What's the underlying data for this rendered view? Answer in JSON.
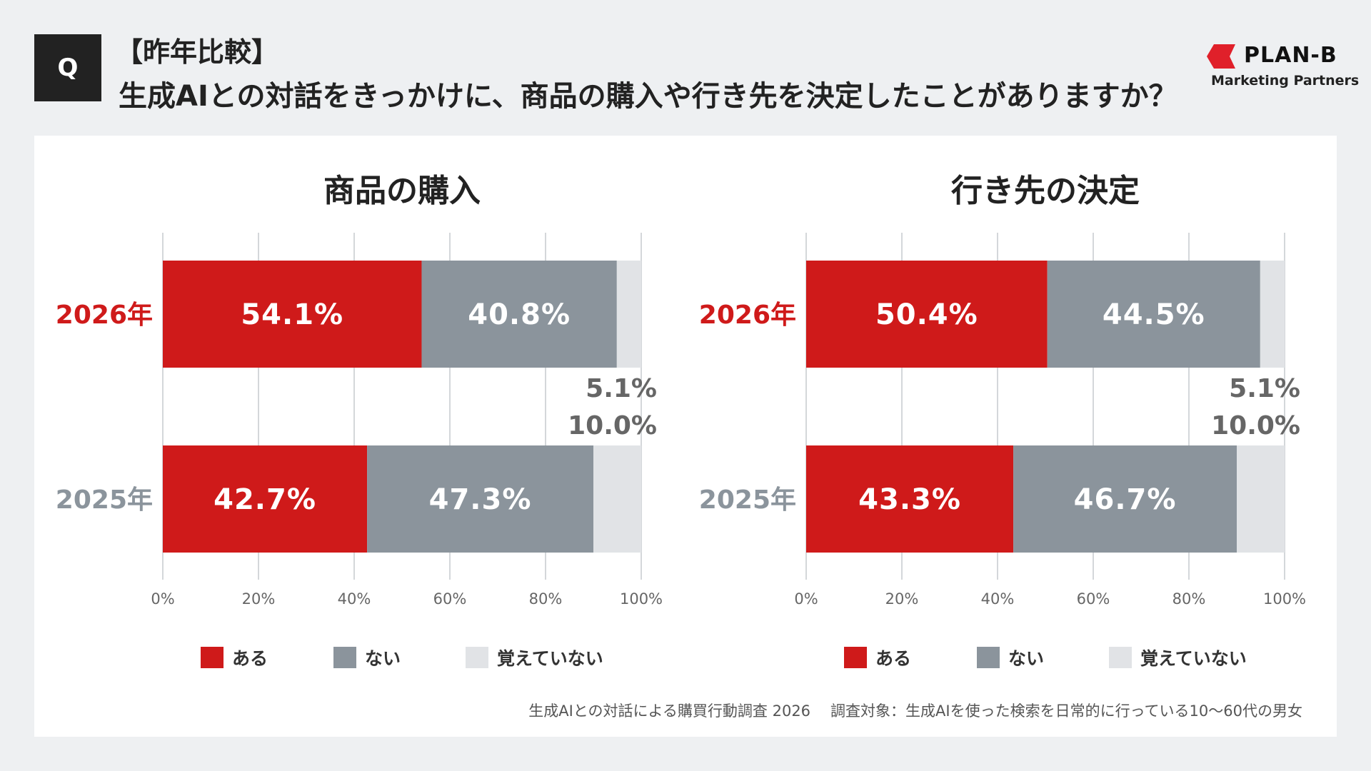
{
  "header": {
    "q_label": "Q",
    "subtitle": "【昨年比較】",
    "question": "生成AIとの対話をきっかけに、商品の購入や行き先を決定したことがありますか？"
  },
  "logo": {
    "name": "PLAN-B",
    "tagline": "Marketing Partners",
    "color": "#e0202a"
  },
  "footer": {
    "survey": "生成AIとの対話による購買行動調査 2026",
    "target": "調査対象：生成AIを使った検索を日常的に行っている10〜60代の男女"
  },
  "colors": {
    "aru": "#cf1a1a",
    "nai": "#8b949c",
    "oboete": "#e1e3e6",
    "highlight_year": "#cf1a1a",
    "muted_year": "#8b949c"
  },
  "chart_data": [
    {
      "type": "bar",
      "orientation": "horizontal-stacked",
      "title": "商品の購入",
      "categories": [
        "2026年",
        "2025年"
      ],
      "highlight_category": "2026年",
      "xlim": [
        0,
        100
      ],
      "x_ticks": [
        "0%",
        "20%",
        "40%",
        "60%",
        "80%",
        "100%"
      ],
      "series": [
        {
          "name": "ある",
          "values": [
            54.1,
            42.7
          ],
          "labels": [
            "54.1%",
            "42.7%"
          ]
        },
        {
          "name": "ない",
          "values": [
            40.8,
            47.3
          ],
          "labels": [
            "40.8%",
            "47.3%"
          ]
        },
        {
          "name": "覚えていない",
          "values": [
            5.1,
            10.0
          ],
          "labels": [
            "5.1%",
            "10.0%"
          ]
        }
      ],
      "legend": [
        "ある",
        "ない",
        "覚えていない"
      ],
      "legend_position": "bottom",
      "grid": true
    },
    {
      "type": "bar",
      "orientation": "horizontal-stacked",
      "title": "行き先の決定",
      "categories": [
        "2026年",
        "2025年"
      ],
      "highlight_category": "2026年",
      "xlim": [
        0,
        100
      ],
      "x_ticks": [
        "0%",
        "20%",
        "40%",
        "60%",
        "80%",
        "100%"
      ],
      "series": [
        {
          "name": "ある",
          "values": [
            50.4,
            43.3
          ],
          "labels": [
            "50.4%",
            "43.3%"
          ]
        },
        {
          "name": "ない",
          "values": [
            44.5,
            46.7
          ],
          "labels": [
            "44.5%",
            "46.7%"
          ]
        },
        {
          "name": "覚えていない",
          "values": [
            5.1,
            10.0
          ],
          "labels": [
            "5.1%",
            "10.0%"
          ]
        }
      ],
      "legend": [
        "ある",
        "ない",
        "覚えていない"
      ],
      "legend_position": "bottom",
      "grid": true
    }
  ]
}
